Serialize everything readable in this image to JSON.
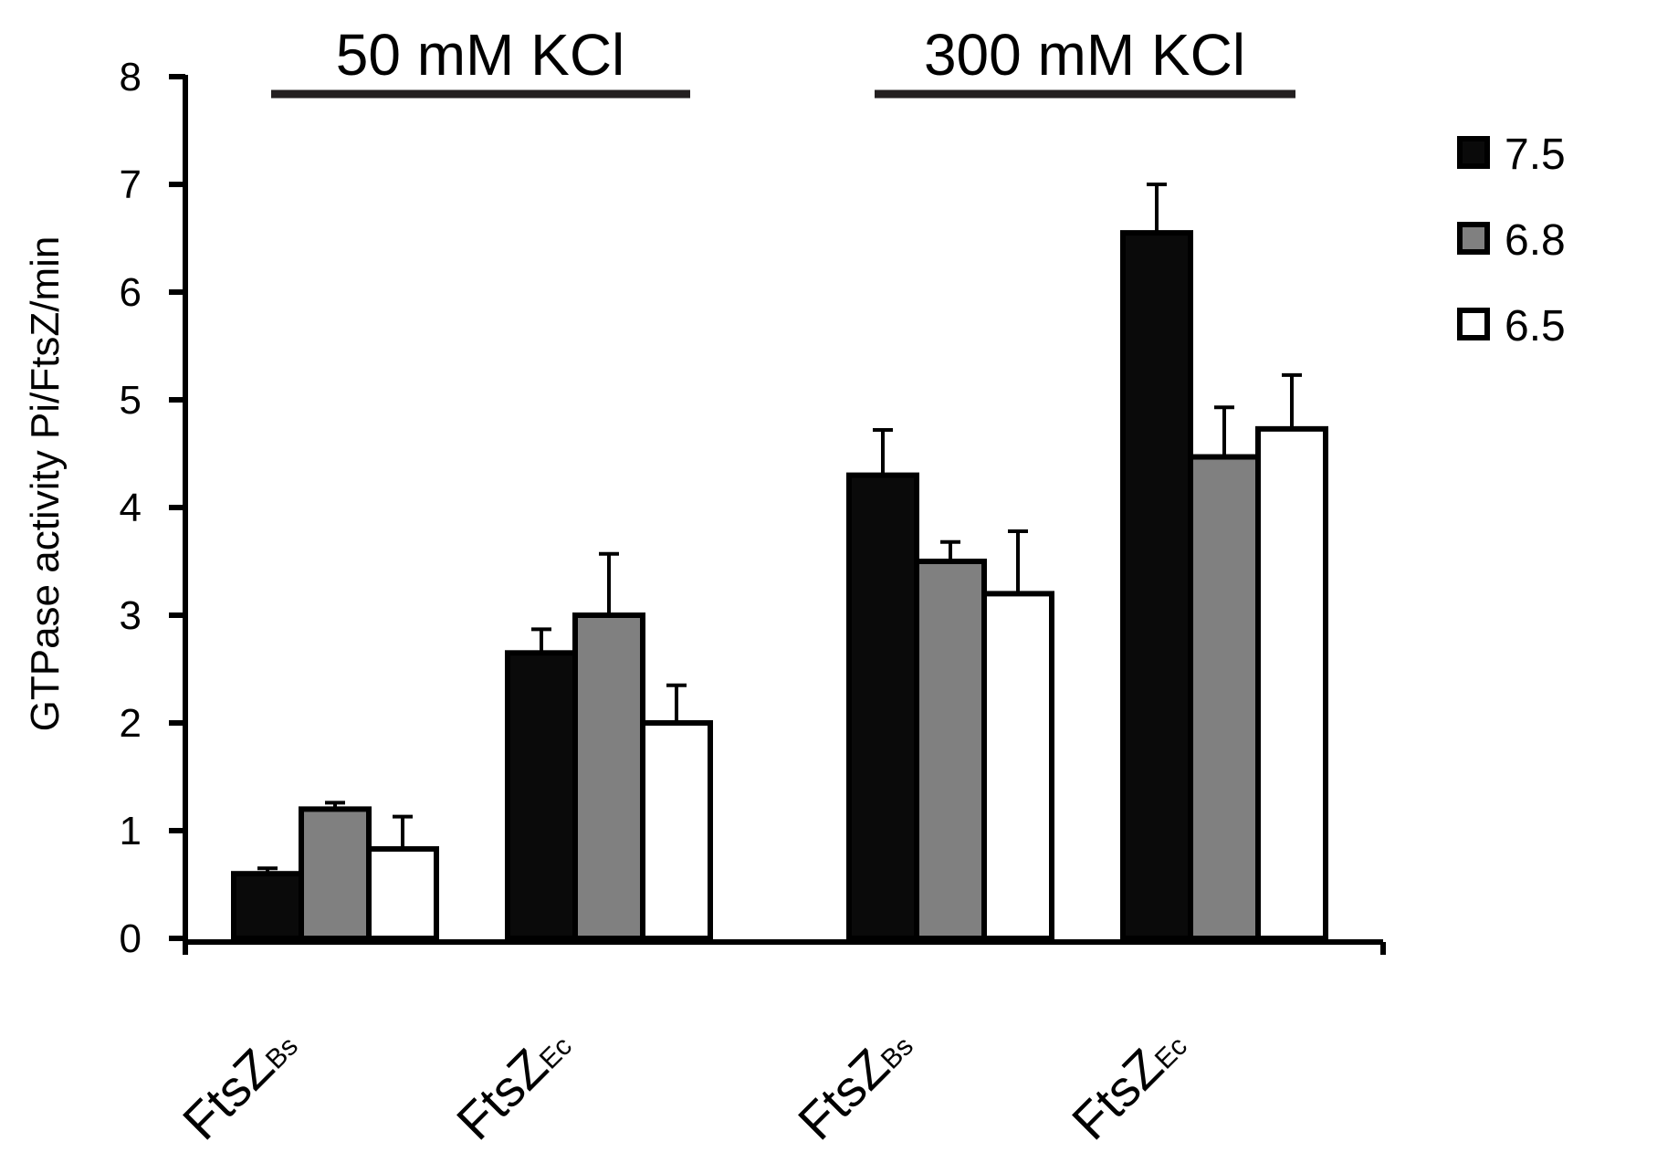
{
  "chart_data": {
    "type": "bar",
    "ylabel": "GTPase activity Pi/FtsZ/min",
    "xlabel": "",
    "ylim": [
      0,
      8
    ],
    "yticks": [
      0,
      1,
      2,
      3,
      4,
      5,
      6,
      7,
      8
    ],
    "grid": false,
    "legend_position": "top-right",
    "groups": [
      {
        "label": "50 mM KCl",
        "categories": [
          0,
          1
        ]
      },
      {
        "label": "300 mM KCl",
        "categories": [
          2,
          3
        ]
      }
    ],
    "categories": [
      {
        "main": "FtsZ",
        "sub": "Bs"
      },
      {
        "main": "FtsZ",
        "sub": "Ec"
      },
      {
        "main": "FtsZ",
        "sub": "Bs"
      },
      {
        "main": "FtsZ",
        "sub": "Ec"
      }
    ],
    "series": [
      {
        "name": "7.5",
        "color": "#0a0a0a",
        "values": [
          0.6,
          2.65,
          4.3,
          6.55
        ],
        "errors": [
          0.05,
          0.22,
          0.42,
          0.45
        ]
      },
      {
        "name": "6.8",
        "color": "#808080",
        "values": [
          1.2,
          3.0,
          3.5,
          4.47
        ],
        "errors": [
          0.06,
          0.57,
          0.18,
          0.46
        ]
      },
      {
        "name": "6.5",
        "color": "#ffffff",
        "values": [
          0.83,
          2.0,
          3.2,
          4.73
        ],
        "errors": [
          0.3,
          0.35,
          0.58,
          0.5
        ]
      }
    ]
  }
}
